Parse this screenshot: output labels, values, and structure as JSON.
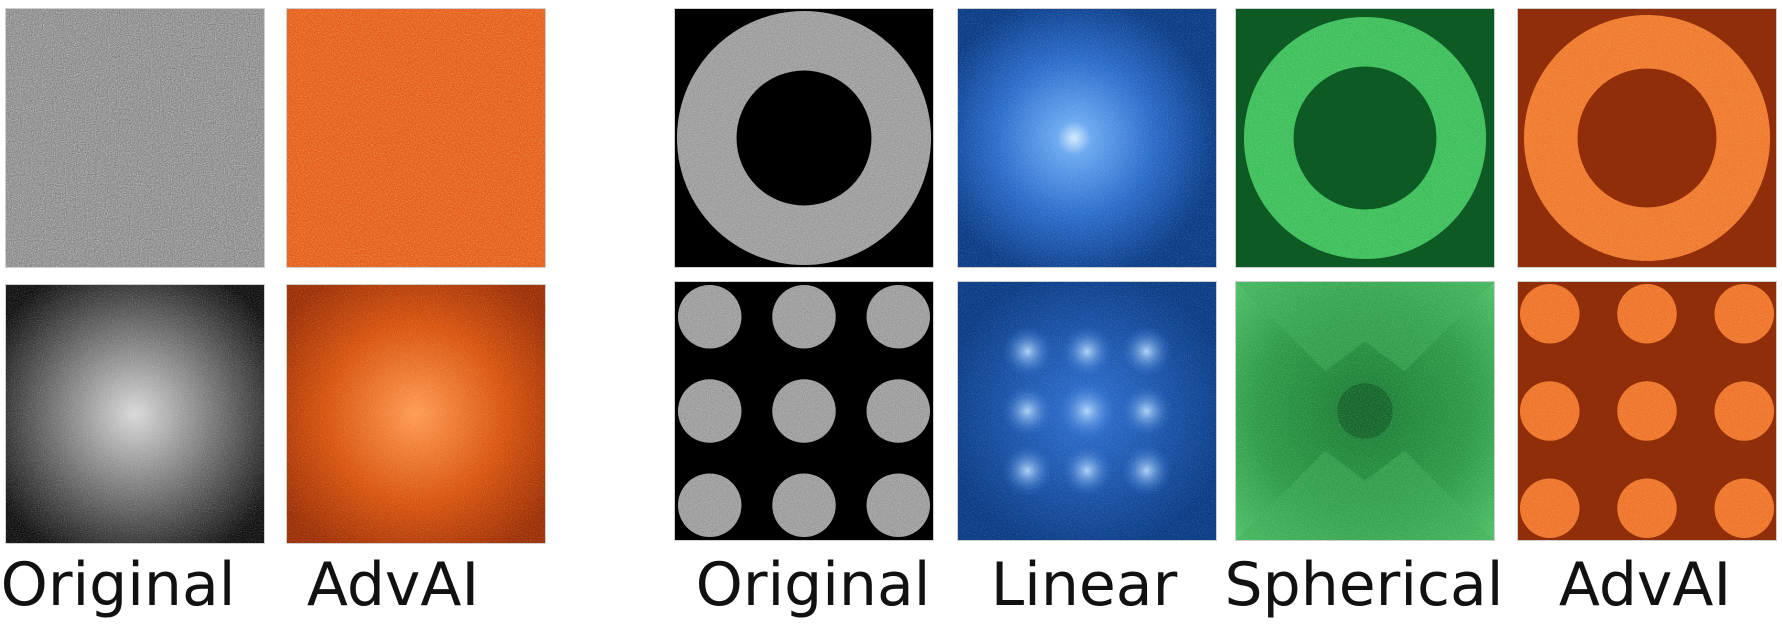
{
  "labels": {
    "left_original": "Original",
    "left_advai": "AdvAI",
    "right_original": "Original",
    "right_linear": "Linear",
    "right_spherical": "Spherical",
    "right_advai": "AdvAI"
  },
  "colors": {
    "gray_bg": "#000000",
    "gray_fg": "#bdbdbd",
    "orange_bg": "#8a2a06",
    "orange_fg": "#ff7a2a",
    "blue_bg": "#0b3f8a",
    "blue_fg": "#7fb6ff",
    "green_bg": "#0c4f1f",
    "green_fg": "#66e07a"
  }
}
